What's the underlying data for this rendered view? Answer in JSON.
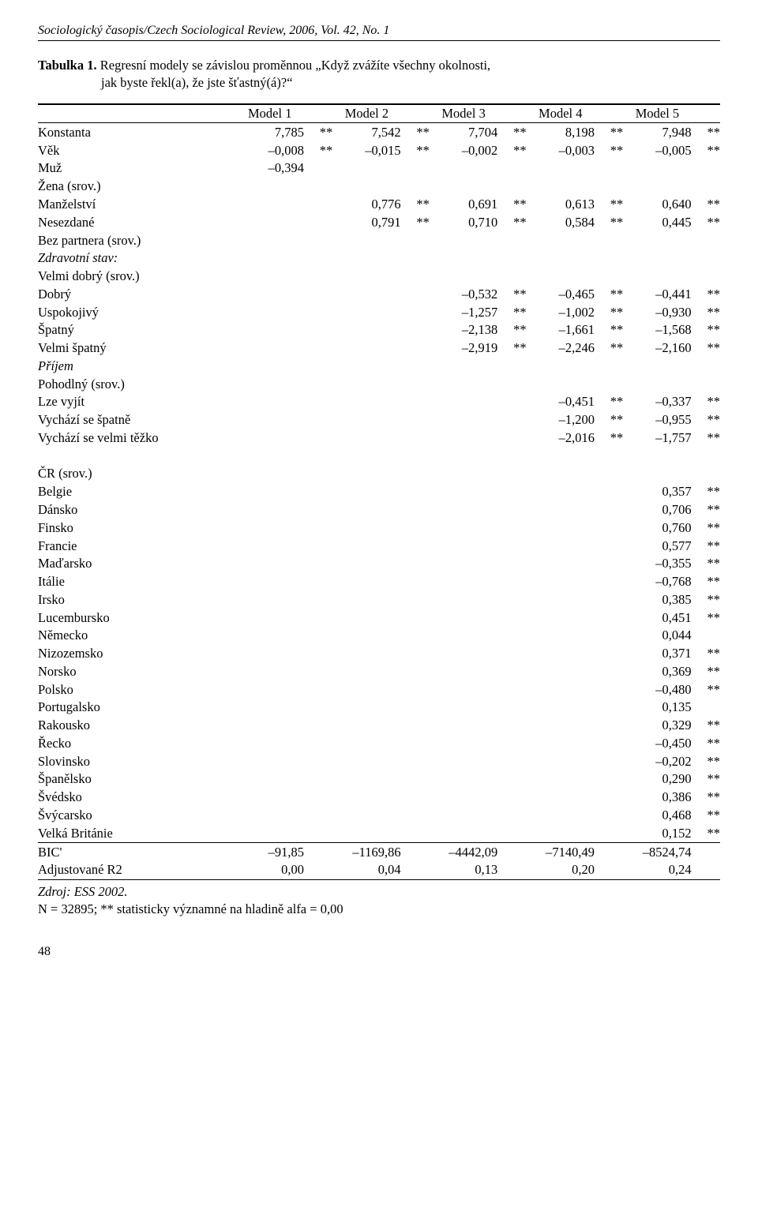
{
  "journal_header": "Sociologický časopis/Czech Sociological Review, 2006, Vol. 42, No. 1",
  "table_label": "Tabulka 1.",
  "table_title_line1": "Regresní modely se závislou proměnnou „Když zvážíte všechny okolnosti,",
  "table_title_line2": "jak byste řekl(a), že jste šťastný(á)?“",
  "columns": [
    "Model 1",
    "Model 2",
    "Model 3",
    "Model 4",
    "Model 5"
  ],
  "rows": [
    {
      "label": "Konstanta",
      "indent": 0,
      "italic": false,
      "vals": [
        [
          "7,785",
          "**"
        ],
        [
          "7,542",
          "**"
        ],
        [
          "7,704",
          "**"
        ],
        [
          "8,198",
          "**"
        ],
        [
          "7,948",
          "**"
        ]
      ]
    },
    {
      "label": "Věk",
      "indent": 0,
      "italic": false,
      "vals": [
        [
          "–0,008",
          "**"
        ],
        [
          "–0,015",
          "**"
        ],
        [
          "–0,002",
          "**"
        ],
        [
          "–0,003",
          "**"
        ],
        [
          "–0,005",
          "**"
        ]
      ]
    },
    {
      "label": "Muž",
      "indent": 0,
      "italic": false,
      "vals": [
        [
          "–0,394",
          ""
        ],
        [
          "",
          ""
        ],
        [
          "",
          ""
        ],
        [
          "",
          ""
        ],
        [
          "",
          ""
        ]
      ]
    },
    {
      "label": "Žena (srov.)",
      "indent": 0,
      "italic": false,
      "vals": [
        [
          "",
          ""
        ],
        [
          "",
          ""
        ],
        [
          "",
          ""
        ],
        [
          "",
          ""
        ],
        [
          "",
          ""
        ]
      ]
    },
    {
      "label": "Manželství",
      "indent": 0,
      "italic": false,
      "vals": [
        [
          "",
          ""
        ],
        [
          "0,776",
          "**"
        ],
        [
          "0,691",
          "**"
        ],
        [
          "0,613",
          "**"
        ],
        [
          "0,640",
          "**"
        ]
      ]
    },
    {
      "label": "Nesezdané",
      "indent": 0,
      "italic": false,
      "vals": [
        [
          "",
          ""
        ],
        [
          "0,791",
          "**"
        ],
        [
          "0,710",
          "**"
        ],
        [
          "0,584",
          "**"
        ],
        [
          "0,445",
          "**"
        ]
      ]
    },
    {
      "label": "Bez partnera (srov.)",
      "indent": 0,
      "italic": false,
      "vals": [
        [
          "",
          ""
        ],
        [
          "",
          ""
        ],
        [
          "",
          ""
        ],
        [
          "",
          ""
        ],
        [
          "",
          ""
        ]
      ]
    },
    {
      "label": "Zdravotní stav:",
      "indent": 0,
      "italic": true,
      "vals": [
        [
          "",
          ""
        ],
        [
          "",
          ""
        ],
        [
          "",
          ""
        ],
        [
          "",
          ""
        ],
        [
          "",
          ""
        ]
      ]
    },
    {
      "label": "Velmi dobrý (srov.)",
      "indent": 1,
      "italic": false,
      "vals": [
        [
          "",
          ""
        ],
        [
          "",
          ""
        ],
        [
          "",
          ""
        ],
        [
          "",
          ""
        ],
        [
          "",
          ""
        ]
      ]
    },
    {
      "label": "Dobrý",
      "indent": 1,
      "italic": false,
      "vals": [
        [
          "",
          ""
        ],
        [
          "",
          ""
        ],
        [
          "–0,532",
          "**"
        ],
        [
          "–0,465",
          "**"
        ],
        [
          "–0,441",
          "**"
        ]
      ]
    },
    {
      "label": "Uspokojivý",
      "indent": 1,
      "italic": false,
      "vals": [
        [
          "",
          ""
        ],
        [
          "",
          ""
        ],
        [
          "–1,257",
          "**"
        ],
        [
          "–1,002",
          "**"
        ],
        [
          "–0,930",
          "**"
        ]
      ]
    },
    {
      "label": "Špatný",
      "indent": 1,
      "italic": false,
      "vals": [
        [
          "",
          ""
        ],
        [
          "",
          ""
        ],
        [
          "–2,138",
          "**"
        ],
        [
          "–1,661",
          "**"
        ],
        [
          "–1,568",
          "**"
        ]
      ]
    },
    {
      "label": "Velmi špatný",
      "indent": 1,
      "italic": false,
      "vals": [
        [
          "",
          ""
        ],
        [
          "",
          ""
        ],
        [
          "–2,919",
          "**"
        ],
        [
          "–2,246",
          "**"
        ],
        [
          "–2,160",
          "**"
        ]
      ]
    },
    {
      "label": "Příjem",
      "indent": 0,
      "italic": true,
      "vals": [
        [
          "",
          ""
        ],
        [
          "",
          ""
        ],
        [
          "",
          ""
        ],
        [
          "",
          ""
        ],
        [
          "",
          ""
        ]
      ]
    },
    {
      "label": "Pohodlný (srov.)",
      "indent": 1,
      "italic": false,
      "vals": [
        [
          "",
          ""
        ],
        [
          "",
          ""
        ],
        [
          "",
          ""
        ],
        [
          "",
          ""
        ],
        [
          "",
          ""
        ]
      ]
    },
    {
      "label": "Lze vyjít",
      "indent": 1,
      "italic": false,
      "vals": [
        [
          "",
          ""
        ],
        [
          "",
          ""
        ],
        [
          "",
          ""
        ],
        [
          "–0,451",
          "**"
        ],
        [
          "–0,337",
          "**"
        ]
      ]
    },
    {
      "label": "Vychází se špatně",
      "indent": 1,
      "italic": false,
      "vals": [
        [
          "",
          ""
        ],
        [
          "",
          ""
        ],
        [
          "",
          ""
        ],
        [
          "–1,200",
          "**"
        ],
        [
          "–0,955",
          "**"
        ]
      ]
    },
    {
      "label": "Vychází se velmi těžko",
      "indent": 1,
      "italic": false,
      "vals": [
        [
          "",
          ""
        ],
        [
          "",
          ""
        ],
        [
          "",
          ""
        ],
        [
          "–2,016",
          "**"
        ],
        [
          "–1,757",
          "**"
        ]
      ]
    }
  ],
  "rows2": [
    {
      "label": "ČR (srov.)",
      "indent": 0,
      "italic": false,
      "vals": [
        [
          "",
          ""
        ],
        [
          "",
          ""
        ],
        [
          "",
          ""
        ],
        [
          "",
          ""
        ],
        [
          "",
          ""
        ]
      ]
    },
    {
      "label": "Belgie",
      "indent": 0,
      "italic": false,
      "vals": [
        [
          "",
          ""
        ],
        [
          "",
          ""
        ],
        [
          "",
          ""
        ],
        [
          "",
          ""
        ],
        [
          "0,357",
          "**"
        ]
      ]
    },
    {
      "label": "Dánsko",
      "indent": 0,
      "italic": false,
      "vals": [
        [
          "",
          ""
        ],
        [
          "",
          ""
        ],
        [
          "",
          ""
        ],
        [
          "",
          ""
        ],
        [
          "0,706",
          "**"
        ]
      ]
    },
    {
      "label": "Finsko",
      "indent": 0,
      "italic": false,
      "vals": [
        [
          "",
          ""
        ],
        [
          "",
          ""
        ],
        [
          "",
          ""
        ],
        [
          "",
          ""
        ],
        [
          "0,760",
          "**"
        ]
      ]
    },
    {
      "label": "Francie",
      "indent": 0,
      "italic": false,
      "vals": [
        [
          "",
          ""
        ],
        [
          "",
          ""
        ],
        [
          "",
          ""
        ],
        [
          "",
          ""
        ],
        [
          "0,577",
          "**"
        ]
      ]
    },
    {
      "label": "Maďarsko",
      "indent": 0,
      "italic": false,
      "vals": [
        [
          "",
          ""
        ],
        [
          "",
          ""
        ],
        [
          "",
          ""
        ],
        [
          "",
          ""
        ],
        [
          "–0,355",
          "**"
        ]
      ]
    },
    {
      "label": "Itálie",
      "indent": 0,
      "italic": false,
      "vals": [
        [
          "",
          ""
        ],
        [
          "",
          ""
        ],
        [
          "",
          ""
        ],
        [
          "",
          ""
        ],
        [
          "–0,768",
          "**"
        ]
      ]
    },
    {
      "label": "Irsko",
      "indent": 0,
      "italic": false,
      "vals": [
        [
          "",
          ""
        ],
        [
          "",
          ""
        ],
        [
          "",
          ""
        ],
        [
          "",
          ""
        ],
        [
          "0,385",
          "**"
        ]
      ]
    },
    {
      "label": "Lucembursko",
      "indent": 0,
      "italic": false,
      "vals": [
        [
          "",
          ""
        ],
        [
          "",
          ""
        ],
        [
          "",
          ""
        ],
        [
          "",
          ""
        ],
        [
          "0,451",
          "**"
        ]
      ]
    },
    {
      "label": "Německo",
      "indent": 0,
      "italic": false,
      "vals": [
        [
          "",
          ""
        ],
        [
          "",
          ""
        ],
        [
          "",
          ""
        ],
        [
          "",
          ""
        ],
        [
          "0,044",
          ""
        ]
      ]
    },
    {
      "label": "Nizozemsko",
      "indent": 0,
      "italic": false,
      "vals": [
        [
          "",
          ""
        ],
        [
          "",
          ""
        ],
        [
          "",
          ""
        ],
        [
          "",
          ""
        ],
        [
          "0,371",
          "**"
        ]
      ]
    },
    {
      "label": "Norsko",
      "indent": 0,
      "italic": false,
      "vals": [
        [
          "",
          ""
        ],
        [
          "",
          ""
        ],
        [
          "",
          ""
        ],
        [
          "",
          ""
        ],
        [
          "0,369",
          "**"
        ]
      ]
    },
    {
      "label": "Polsko",
      "indent": 0,
      "italic": false,
      "vals": [
        [
          "",
          ""
        ],
        [
          "",
          ""
        ],
        [
          "",
          ""
        ],
        [
          "",
          ""
        ],
        [
          "–0,480",
          "**"
        ]
      ]
    },
    {
      "label": "Portugalsko",
      "indent": 0,
      "italic": false,
      "vals": [
        [
          "",
          ""
        ],
        [
          "",
          ""
        ],
        [
          "",
          ""
        ],
        [
          "",
          ""
        ],
        [
          "0,135",
          ""
        ]
      ]
    },
    {
      "label": "Rakousko",
      "indent": 0,
      "italic": false,
      "vals": [
        [
          "",
          ""
        ],
        [
          "",
          ""
        ],
        [
          "",
          ""
        ],
        [
          "",
          ""
        ],
        [
          "0,329",
          "**"
        ]
      ]
    },
    {
      "label": "Řecko",
      "indent": 0,
      "italic": false,
      "vals": [
        [
          "",
          ""
        ],
        [
          "",
          ""
        ],
        [
          "",
          ""
        ],
        [
          "",
          ""
        ],
        [
          "–0,450",
          "**"
        ]
      ]
    },
    {
      "label": "Slovinsko",
      "indent": 0,
      "italic": false,
      "vals": [
        [
          "",
          ""
        ],
        [
          "",
          ""
        ],
        [
          "",
          ""
        ],
        [
          "",
          ""
        ],
        [
          "–0,202",
          "**"
        ]
      ]
    },
    {
      "label": "Španělsko",
      "indent": 0,
      "italic": false,
      "vals": [
        [
          "",
          ""
        ],
        [
          "",
          ""
        ],
        [
          "",
          ""
        ],
        [
          "",
          ""
        ],
        [
          "0,290",
          "**"
        ]
      ]
    },
    {
      "label": "Švédsko",
      "indent": 0,
      "italic": false,
      "vals": [
        [
          "",
          ""
        ],
        [
          "",
          ""
        ],
        [
          "",
          ""
        ],
        [
          "",
          ""
        ],
        [
          "0,386",
          "**"
        ]
      ]
    },
    {
      "label": "Švýcarsko",
      "indent": 0,
      "italic": false,
      "vals": [
        [
          "",
          ""
        ],
        [
          "",
          ""
        ],
        [
          "",
          ""
        ],
        [
          "",
          ""
        ],
        [
          "0,468",
          "**"
        ]
      ]
    },
    {
      "label": "Velká Británie",
      "indent": 0,
      "italic": false,
      "vals": [
        [
          "",
          ""
        ],
        [
          "",
          ""
        ],
        [
          "",
          ""
        ],
        [
          "",
          ""
        ],
        [
          "0,152",
          "**"
        ]
      ]
    }
  ],
  "footer_rows": [
    {
      "label": "BIC'",
      "indent": 0,
      "italic": false,
      "vals": [
        [
          "–91,85",
          ""
        ],
        [
          "–1169,86",
          ""
        ],
        [
          "–4442,09",
          ""
        ],
        [
          "–7140,49",
          ""
        ],
        [
          "–8524,74",
          ""
        ]
      ]
    },
    {
      "label": "Adjustované R2",
      "indent": 0,
      "italic": false,
      "vals": [
        [
          "0,00",
          ""
        ],
        [
          "0,04",
          ""
        ],
        [
          "0,13",
          ""
        ],
        [
          "0,20",
          ""
        ],
        [
          "0,24",
          ""
        ]
      ]
    }
  ],
  "source": "Zdroj: ESS 2002.",
  "note": "N = 32895; ** statisticky významné na hladině alfa = 0,00",
  "page_number": "48"
}
